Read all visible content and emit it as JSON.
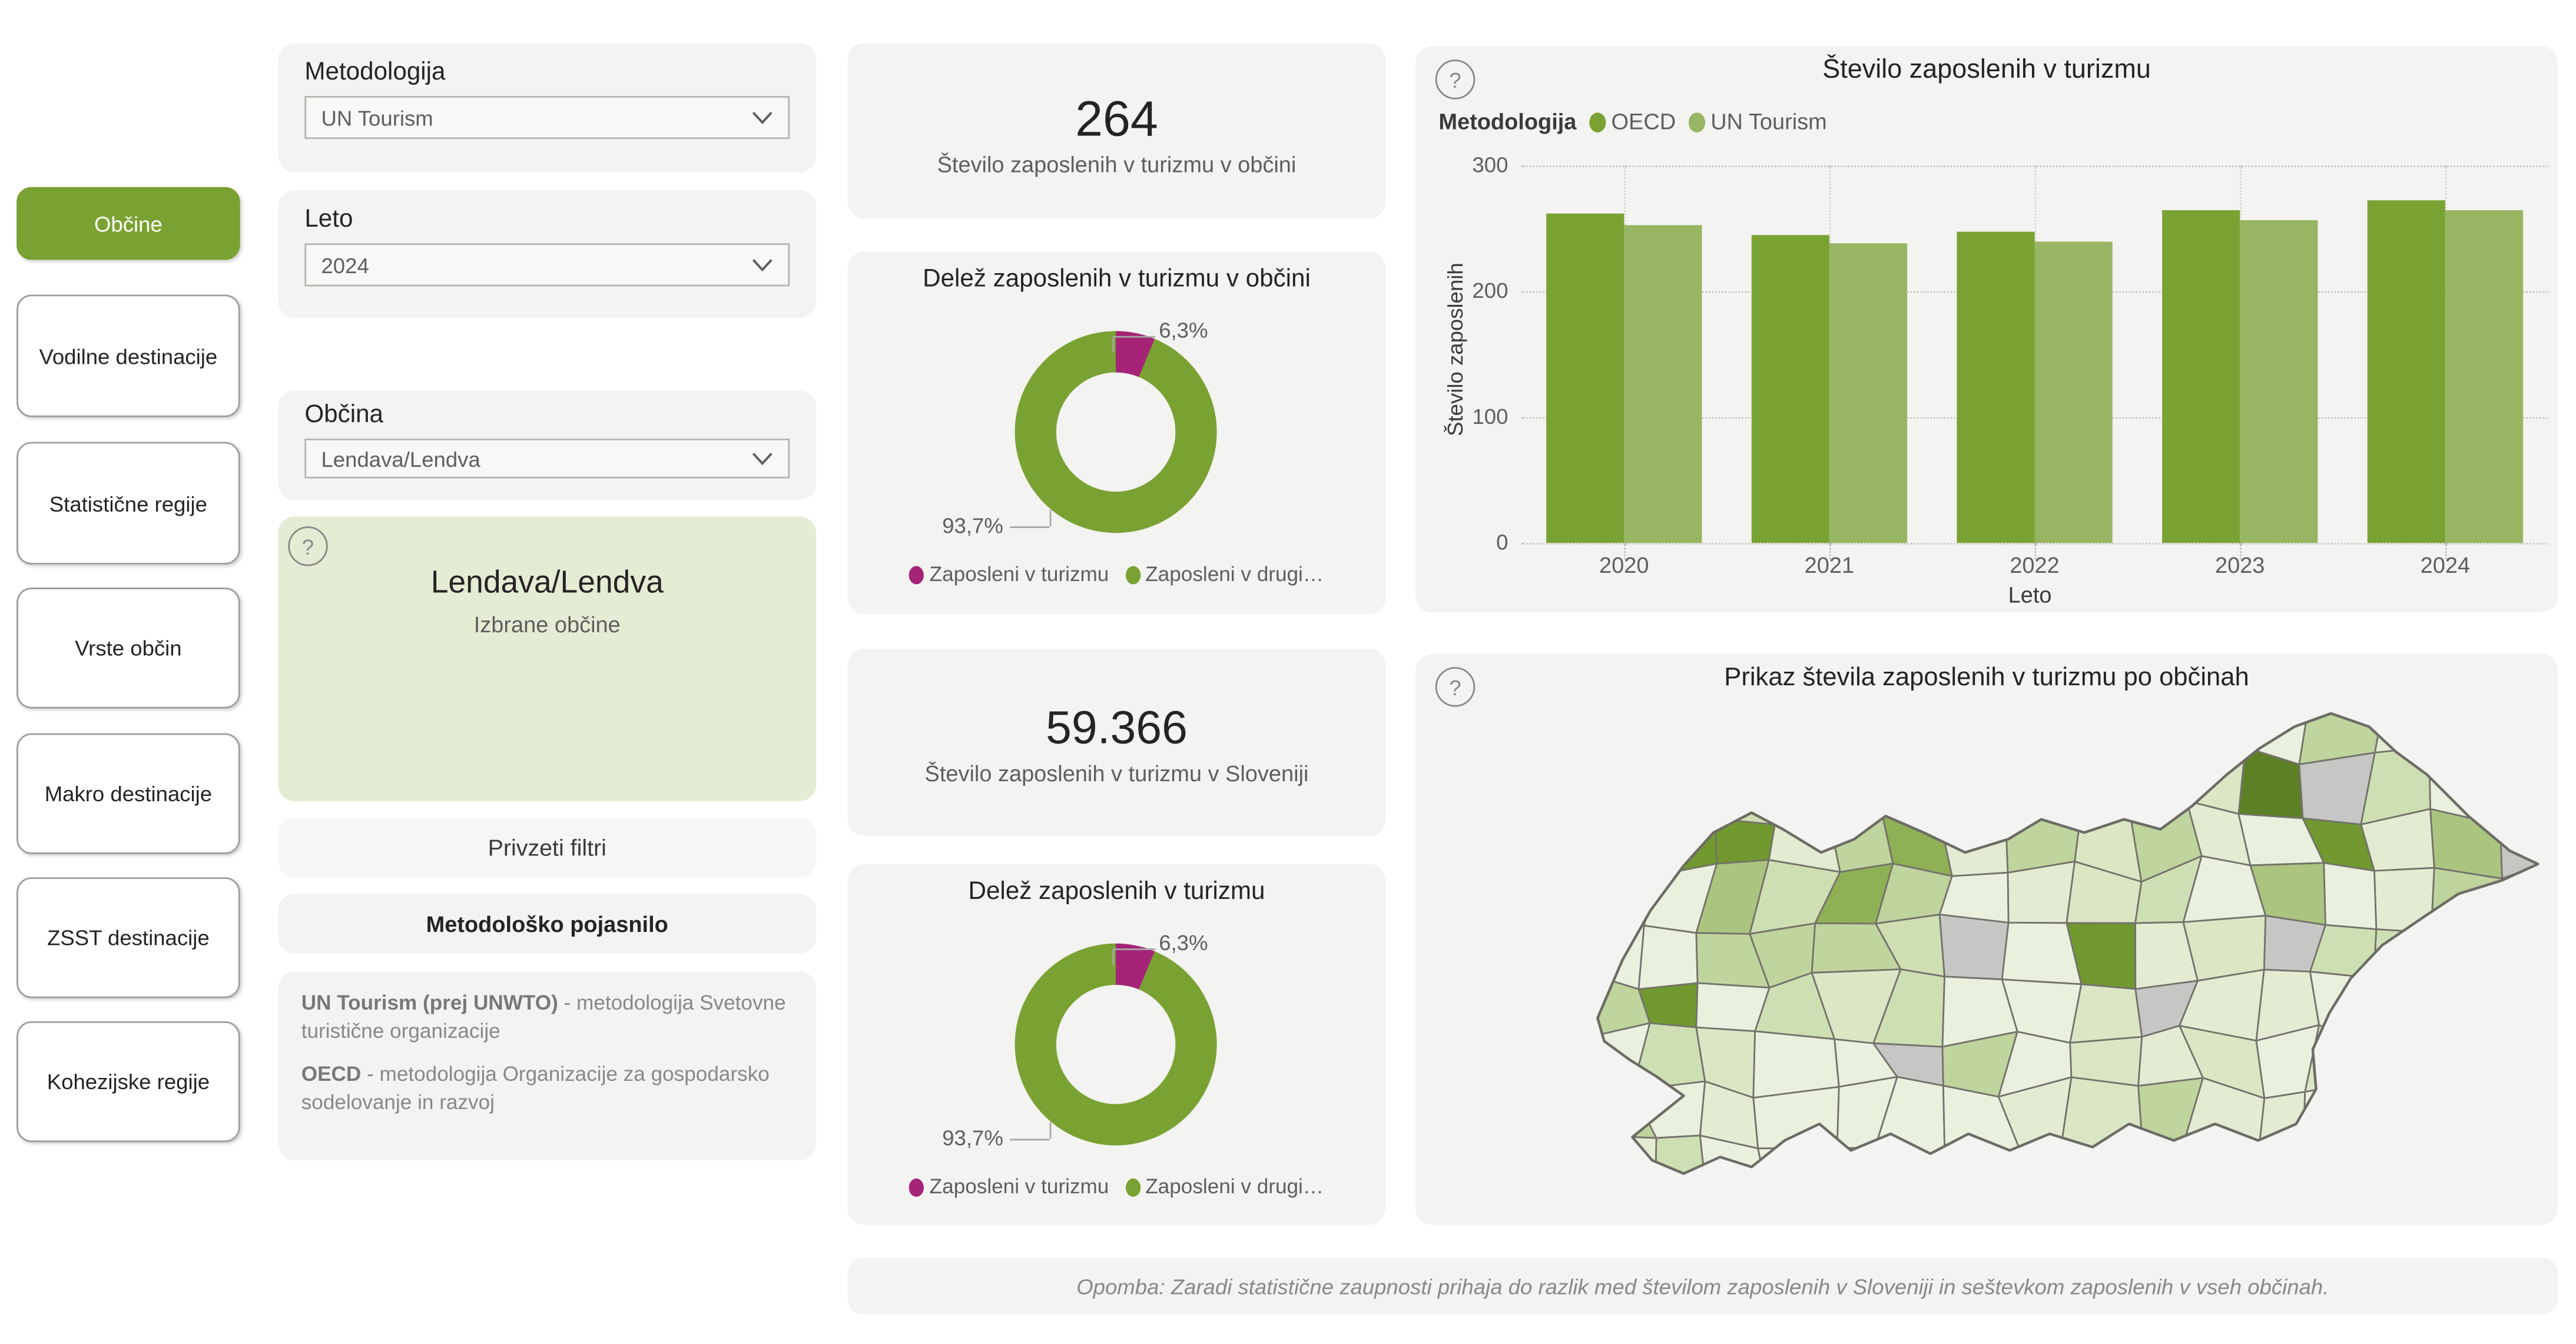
{
  "icons": {
    "help": "?"
  },
  "sidebar": {
    "items": [
      {
        "label": "Občine",
        "active": true
      },
      {
        "label": "Vodilne destinacije",
        "active": false
      },
      {
        "label": "Statistične regije",
        "active": false
      },
      {
        "label": "Vrste občin",
        "active": false
      },
      {
        "label": "Makro destinacije",
        "active": false
      },
      {
        "label": "ZSST destinacije",
        "active": false
      },
      {
        "label": "Kohezijske regije",
        "active": false
      }
    ]
  },
  "filters": {
    "metodologija": {
      "label": "Metodologija",
      "value": "UN Tourism"
    },
    "leto": {
      "label": "Leto",
      "value": "2024"
    },
    "obcina": {
      "label": "Občina",
      "value": "Lendava/Lendva"
    },
    "selected": {
      "title": "Lendava/Lendva",
      "subtitle": "Izbrane občine"
    },
    "default_filters_label": "Privzeti filtri",
    "method_note_label": "Metodološko pojasnilo",
    "un_bold": "UN Tourism (prej UNWTO)",
    "un_rest": " - metodologija Svetovne turistične organizacije",
    "oecd_bold": "OECD",
    "oecd_rest": " - metodologija Organizacije za gospodarsko sodelovanje in razvoj"
  },
  "kpis": {
    "municipality": {
      "value": "264",
      "caption": "Število zaposlenih v turizmu v občini"
    },
    "slovenia": {
      "value": "59.366",
      "caption": "Število zaposlenih v turizmu v Sloveniji"
    }
  },
  "donut_municipality": {
    "title": "Delež zaposlenih v turizmu v občini",
    "tourism_pct": 6.3,
    "tourism_pct_label": "6,3%",
    "other_pct_label": "93,7%",
    "legend": [
      {
        "label": "Zaposleni v turizmu",
        "color": "#a52478"
      },
      {
        "label": "Zaposleni v drugi…",
        "color": "#7aa233"
      }
    ]
  },
  "donut_slovenia": {
    "title": "Delež zaposlenih v turizmu",
    "tourism_pct": 6.3,
    "tourism_pct_label": "6,3%",
    "other_pct_label": "93,7%",
    "legend": [
      {
        "label": "Zaposleni v turizmu",
        "color": "#a52478"
      },
      {
        "label": "Zaposleni v drugi…",
        "color": "#7aa233"
      }
    ]
  },
  "chart_data": {
    "type": "bar",
    "title": "Število zaposlenih v turizmu",
    "legend_title": "Metodologija",
    "categories": [
      "2020",
      "2021",
      "2022",
      "2023",
      "2024"
    ],
    "series": [
      {
        "name": "OECD",
        "color": "#7aa233",
        "values": [
          262,
          245,
          248,
          265,
          272
        ]
      },
      {
        "name": "UN Tourism",
        "color": "#97b562",
        "values": [
          252,
          238,
          240,
          257,
          264
        ]
      }
    ],
    "xlabel": "Leto",
    "ylabel": "Število zaposlenih",
    "ylim": [
      0,
      300
    ],
    "yticks": [
      0,
      100,
      200,
      300
    ],
    "grid": "dotted",
    "legend_position": "top-left"
  },
  "map": {
    "title": "Prikaz števila zaposlenih v turizmu po občinah",
    "palette": {
      "pale1": "#eaf0de",
      "pale2": "#e3ecd2",
      "pale3": "#dbe6c5",
      "light": "#cfdfb4",
      "mid": "#c0d49e",
      "mid2": "#abc480",
      "strong": "#71992f",
      "dark": "#49631b",
      "na_gray": "#c6c6c4",
      "border": "#73726b"
    },
    "overrides": {
      "1,1": "#49631b",
      "0,2": "#71992f",
      "1,2": "#71992f",
      "2,2": "#71992f",
      "3,1": "#71992f",
      "11,1": "#5d8026",
      "12,2": "#71992f",
      "8,4": "#71992f",
      "1,5": "#71992f",
      "4,3": "#8fb054",
      "5,2": "#8fb054",
      "2,3": "#abc480",
      "6,1": "#abc480",
      "13,1": "#cfdfb4",
      "9,2": "#c0d49e",
      "4,1": "#c6c6c4",
      "10,0": "#c6c6c4",
      "12,1": "#c6c6c4",
      "6,4": "#c6c6c4",
      "9,5": "#c6c6c4",
      "5,6": "#c6c6c4"
    }
  },
  "note": "Opomba: Zaradi statistične zaupnosti prihaja do razlik med številom zaposlenih v Sloveniji in seštevkom zaposlenih v vseh občinah."
}
